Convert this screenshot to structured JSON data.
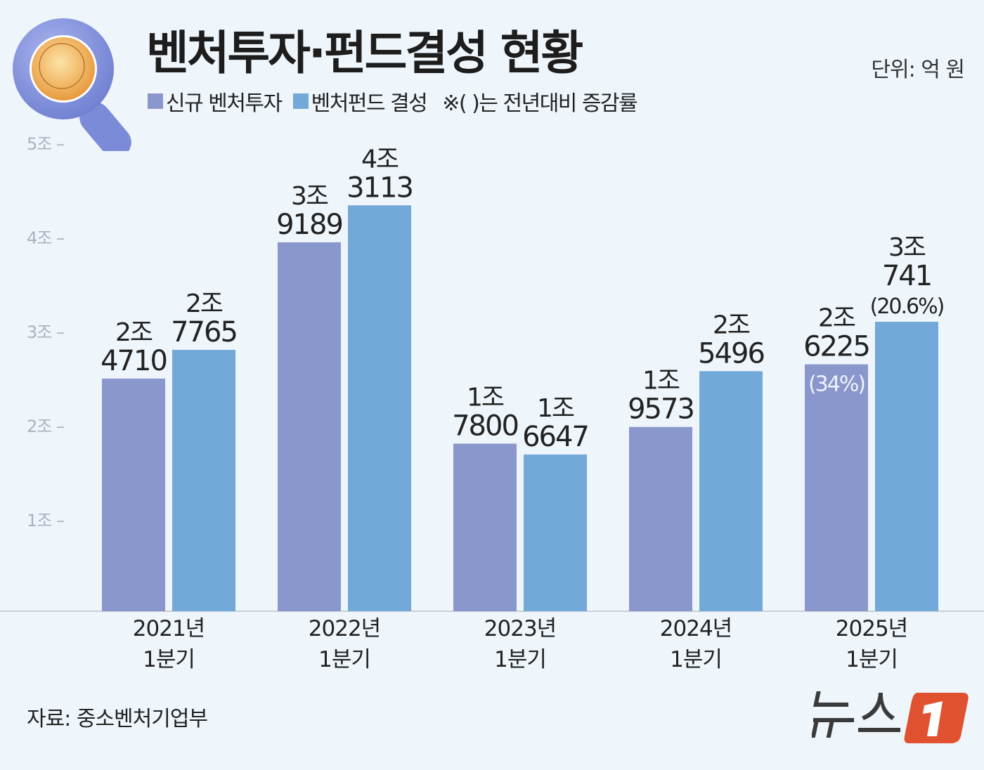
{
  "title": "벤처투자·펀드결성 현황",
  "unit": "단위: 억 원",
  "legend": {
    "series1": "신규 벤처투자",
    "series2": "벤처펀드 결성",
    "note": "※( )는 전년대비 증감률"
  },
  "source": "자료: 중소벤처기업부",
  "logo_text": "뉴스1",
  "colors": {
    "series1": "#8a97cc",
    "series2": "#72a9d8",
    "background": "#eef5fb",
    "logo_accent": "#e0522f"
  },
  "icon": "magnifier-coin-icon",
  "chart_data": {
    "type": "bar",
    "title": "벤처투자·펀드결성 현황",
    "unit": "억 원",
    "ylim": [
      0,
      50000
    ],
    "yticks": [
      {
        "value": 50000,
        "label": "5조 –"
      },
      {
        "value": 40000,
        "label": "4조 –"
      },
      {
        "value": 30000,
        "label": "3조 –"
      },
      {
        "value": 20000,
        "label": "2조 –"
      },
      {
        "value": 10000,
        "label": "1조 –"
      }
    ],
    "grid": false,
    "legend_position": "top-left",
    "categories": [
      {
        "year": "2021년",
        "quarter": "1분기"
      },
      {
        "year": "2022년",
        "quarter": "1분기"
      },
      {
        "year": "2023년",
        "quarter": "1분기"
      },
      {
        "year": "2024년",
        "quarter": "1분기"
      },
      {
        "year": "2025년",
        "quarter": "1분기"
      }
    ],
    "series": [
      {
        "name": "신규 벤처투자",
        "values": [
          24710,
          39189,
          17800,
          19573,
          26225
        ],
        "labels": [
          [
            "2조",
            "4710"
          ],
          [
            "3조",
            "9189"
          ],
          [
            "1조",
            "7800"
          ],
          [
            "1조",
            "9573"
          ],
          [
            "2조",
            "6225"
          ]
        ],
        "change": [
          null,
          null,
          null,
          null,
          "(34%)"
        ]
      },
      {
        "name": "벤처펀드 결성",
        "values": [
          27765,
          43113,
          16647,
          25496,
          30741
        ],
        "labels": [
          [
            "2조",
            "7765"
          ],
          [
            "4조",
            "3113"
          ],
          [
            "1조",
            "6647"
          ],
          [
            "2조",
            "5496"
          ],
          [
            "3조",
            "741"
          ]
        ],
        "change": [
          null,
          null,
          null,
          null,
          "(20.6%)"
        ]
      }
    ]
  }
}
